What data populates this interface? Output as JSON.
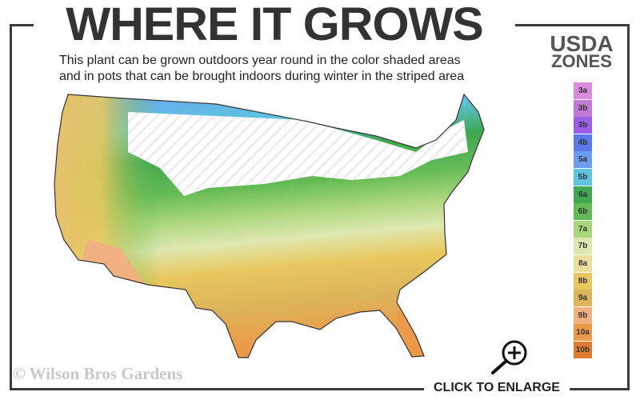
{
  "header": {
    "title": "WHERE IT GROWS",
    "subtitle_line1": "This plant can be grown outdoors year round in the color shaded areas",
    "subtitle_line2": "and in pots that can be brought indoors during winter in the striped area"
  },
  "legend": {
    "title_line1": "USDA",
    "title_line2": "ZONES",
    "zones": [
      {
        "label": "3a",
        "color": "#d98be0"
      },
      {
        "label": "3b",
        "color": "#c27ad6"
      },
      {
        "label": "3b",
        "color": "#9a5ee8"
      },
      {
        "label": "4b",
        "color": "#5a78e8"
      },
      {
        "label": "5a",
        "color": "#6e9cf2"
      },
      {
        "label": "5b",
        "color": "#5ec4e0"
      },
      {
        "label": "6a",
        "color": "#3fa850"
      },
      {
        "label": "6b",
        "color": "#63bb55"
      },
      {
        "label": "7a",
        "color": "#a8d67a"
      },
      {
        "label": "7b",
        "color": "#dfe8b0"
      },
      {
        "label": "8a",
        "color": "#ecdf9e"
      },
      {
        "label": "8b",
        "color": "#e8c85e"
      },
      {
        "label": "9a",
        "color": "#dcb45a"
      },
      {
        "label": "9b",
        "color": "#f0b080"
      },
      {
        "label": "10a",
        "color": "#ec9a48"
      },
      {
        "label": "10b",
        "color": "#e07a30"
      }
    ]
  },
  "footer": {
    "copyright": "© Wilson Bros Gardens",
    "enlarge_label": "CLICK TO ENLARGE"
  }
}
